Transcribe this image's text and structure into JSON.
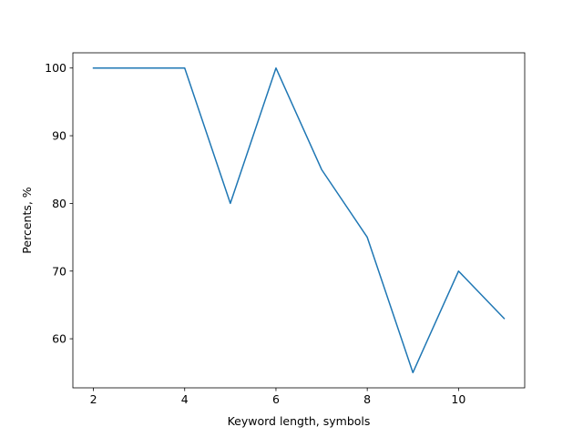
{
  "chart_data": {
    "type": "line",
    "title": "",
    "xlabel": "Keyword length, symbols",
    "ylabel": "Percents, %",
    "xlim": [
      1.55,
      11.45
    ],
    "ylim": [
      52.75,
      102.25
    ],
    "xticks": [
      2,
      4,
      6,
      8,
      10
    ],
    "yticks": [
      60,
      70,
      80,
      90,
      100
    ],
    "grid": false,
    "legend": "none",
    "series": [
      {
        "color": "#1f77b4",
        "x": [
          2,
          3,
          4,
          5,
          6,
          7,
          8,
          9,
          10,
          11
        ],
        "y": [
          100,
          100,
          100,
          80,
          100,
          85,
          75,
          55,
          70,
          63
        ]
      }
    ]
  }
}
